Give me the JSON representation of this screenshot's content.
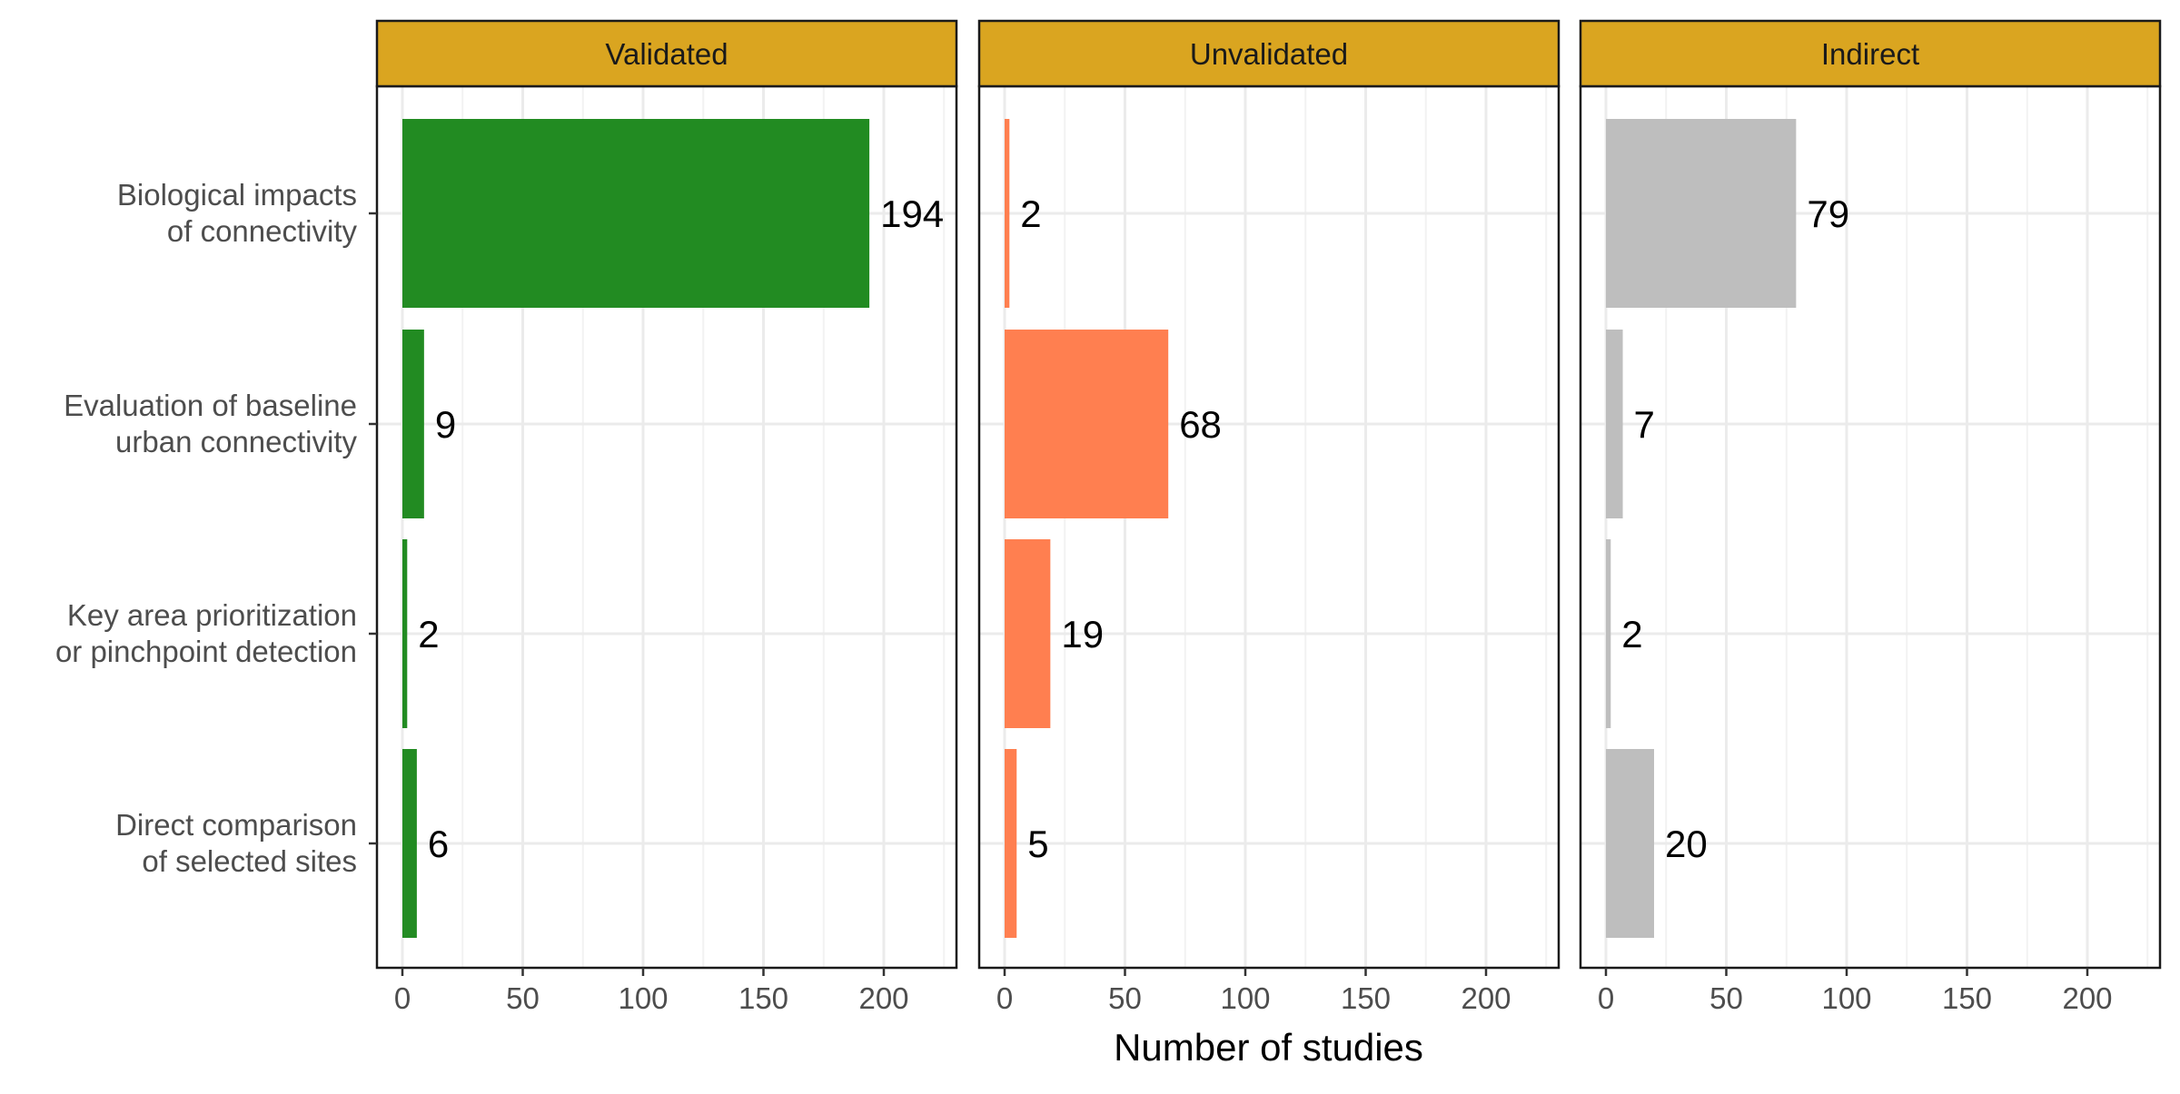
{
  "chart_data": {
    "type": "bar",
    "orientation": "horizontal",
    "facet_by": "validation",
    "title": "",
    "xlabel": "Number of studies",
    "ylabel": "",
    "xlim": [
      0,
      230
    ],
    "xticks": [
      "0",
      "50",
      "100",
      "150",
      "200"
    ],
    "grid": true,
    "legend": "none",
    "categories": [
      "Biological impacts\nof connectivity",
      "Evaluation of baseline\nurban connectivity",
      "Key area prioritization\nor pinchpoint detection",
      "Direct comparison\nof selected sites"
    ],
    "panels": [
      {
        "name": "Validated",
        "color": "#228B22",
        "values": [
          194,
          9,
          2,
          6
        ]
      },
      {
        "name": "Unvalidated",
        "color": "#FF7F50",
        "values": [
          2,
          68,
          19,
          5
        ]
      },
      {
        "name": "Indirect",
        "color": "#BEBEBE",
        "values": [
          79,
          7,
          2,
          20
        ]
      }
    ],
    "strip_color": "#DAA520"
  }
}
